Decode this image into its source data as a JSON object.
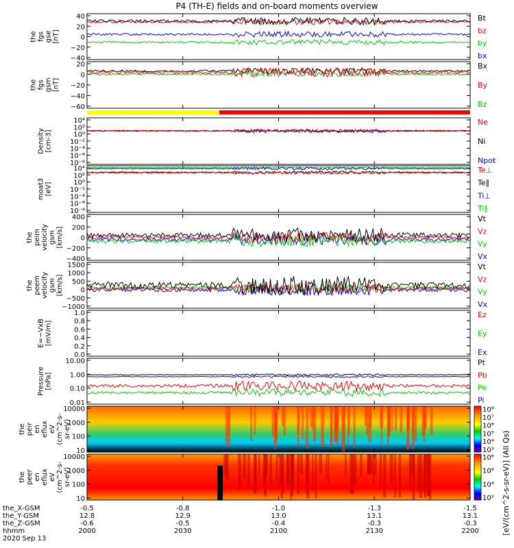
{
  "title": "P4 (TH-E) fields and on-board moments overview",
  "date_label": "2020 Sep 13",
  "colorbar_unit": "[eV/(cm^2-s-sr-eV)] (All Qs)",
  "time_axis": {
    "ticks": [
      {
        "hhmm": "2000",
        "x": "-0.5",
        "y": "12.8",
        "z": "-0.6"
      },
      {
        "hhmm": "2030",
        "x": "-0.8",
        "y": "12.9",
        "z": "-0.5"
      },
      {
        "hhmm": "2100",
        "x": "-1.0",
        "y": "13.0",
        "z": "-0.4"
      },
      {
        "hhmm": "2130",
        "x": "-1.3",
        "y": "13.1",
        "z": "-0.3"
      },
      {
        "hhmm": "2200",
        "x": "-1.5",
        "y": "13.1",
        "z": "-0.3"
      }
    ],
    "row_labels": [
      "the_X-GSM",
      "the_Y-GSM",
      "the_Z-GSM",
      "hhmm"
    ]
  },
  "mode_bar": {
    "colors": [
      "#ffff00",
      "#ff0000"
    ],
    "switch_fraction": 0.345
  },
  "chart_data": [
    {
      "type": "line",
      "ylabel_lines": [
        "the",
        "fgs",
        "gse",
        "[nT]"
      ],
      "ticks": [
        "40",
        "20",
        "0",
        "−20",
        "−40"
      ],
      "ylim": [
        -40,
        40
      ],
      "scale": "linear",
      "legend": [
        {
          "name": "Bt",
          "color": "#000000"
        },
        {
          "name": "bz",
          "color": "#ff0000"
        },
        {
          "name": "by",
          "color": "#00cc00"
        },
        {
          "name": "bx",
          "color": "#0000ff"
        }
      ]
    },
    {
      "type": "line",
      "ylabel_lines": [
        "the",
        "fgs",
        "gsm",
        "[nT]"
      ],
      "ticks": [
        "20",
        "0",
        "−20",
        "−40",
        "−60"
      ],
      "ylim": [
        -70,
        25
      ],
      "scale": "linear",
      "legend": [
        {
          "name": "Bx",
          "color": "#000000"
        },
        {
          "name": "By",
          "color": "#ff0000"
        },
        {
          "name": "Bz",
          "color": "#00cc00"
        }
      ]
    },
    {
      "type": "line",
      "ylabel_lines": [
        "Density",
        "[cm-3]"
      ],
      "ticks": [
        "10⁴",
        "10²",
        "10⁰",
        "10⁻²",
        "10⁻⁴",
        "10⁻⁶",
        "10⁻⁸"
      ],
      "ylim": [
        -8,
        4
      ],
      "scale": "log",
      "legend": [
        {
          "name": "Ne",
          "color": "#ff0000"
        },
        {
          "name": "Ni",
          "color": "#000000"
        },
        {
          "name": "Npot",
          "color": "#0000ff"
        }
      ]
    },
    {
      "type": "line",
      "ylabel_lines": [
        "moat3",
        "[eV]"
      ],
      "ticks": [
        "10⁴",
        "10²",
        "10⁰",
        "10⁻²",
        "10⁻⁴",
        "10⁻⁶",
        "10⁻⁸"
      ],
      "ylim": [
        -8,
        4
      ],
      "scale": "log",
      "legend": [
        {
          "name": "Te⊥",
          "color": "#ff0000"
        },
        {
          "name": "Te∥",
          "color": "#000000"
        },
        {
          "name": "Ti⊥",
          "color": "#0000ff"
        },
        {
          "name": "Ti∥",
          "color": "#00cc00"
        }
      ]
    },
    {
      "type": "line",
      "ylabel_lines": [
        "the",
        "peim",
        "velocity",
        "gsm",
        "[km/s]"
      ],
      "ticks": [
        "400",
        "200",
        "0",
        "−200",
        "−400"
      ],
      "ylim": [
        -400,
        400
      ],
      "scale": "linear",
      "legend": [
        {
          "name": "Vt",
          "color": "#000000"
        },
        {
          "name": "Vz",
          "color": "#ff0000"
        },
        {
          "name": "Vy",
          "color": "#00cc00"
        },
        {
          "name": "Vx",
          "color": "#0000ff"
        }
      ]
    },
    {
      "type": "line",
      "ylabel_lines": [
        "the",
        "peem",
        "velocity",
        "gsm",
        "[km/s]"
      ],
      "ticks": [
        "1500",
        "1000",
        "500",
        "0",
        "−500",
        "−1000"
      ],
      "ylim": [
        -1200,
        1600
      ],
      "scale": "linear",
      "legend": [
        {
          "name": "Vt",
          "color": "#000000"
        },
        {
          "name": "Vz",
          "color": "#ff0000"
        },
        {
          "name": "Vy",
          "color": "#00cc00"
        },
        {
          "name": "Vx",
          "color": "#0000ff"
        }
      ]
    },
    {
      "type": "line",
      "ylabel_lines": [
        "E=−VxB",
        "[mV/m]"
      ],
      "ticks": [
        "1.0",
        "0.8",
        "0.6",
        "0.4",
        "0.2",
        "0.0"
      ],
      "ylim": [
        0,
        1
      ],
      "scale": "linear",
      "legend": [
        {
          "name": "Ez",
          "color": "#ff0000"
        },
        {
          "name": "Ey",
          "color": "#00cc00"
        },
        {
          "name": "Ex",
          "color": "#0000ff"
        }
      ]
    },
    {
      "type": "line",
      "ylabel_lines": [
        "Pressure",
        "[nPa]"
      ],
      "ticks": [
        "10.00",
        "1.00",
        "0.10",
        "0.01"
      ],
      "ylim": [
        -2,
        1
      ],
      "scale": "log",
      "legend": [
        {
          "name": "Pt",
          "color": "#000000"
        },
        {
          "name": "Pb",
          "color": "#ff0000"
        },
        {
          "name": "Pe",
          "color": "#00cc00"
        },
        {
          "name": "Pi",
          "color": "#0000ff"
        }
      ]
    },
    {
      "type": "heatmap",
      "ylabel_lines": [
        "the",
        "peir",
        "en",
        "eflux",
        "eV",
        "(cm^2-s-",
        "sr-eV)"
      ],
      "ticks": [
        "10000",
        "1000",
        "100",
        "10"
      ],
      "ylim": [
        5,
        30000
      ],
      "scale": "log",
      "colorbar_ticks": [
        "10⁸",
        "10⁷",
        "10⁶",
        "10⁵",
        "10⁴",
        "10³"
      ]
    },
    {
      "type": "heatmap",
      "ylabel_lines": [
        "the",
        "peer",
        "en",
        "eflux",
        "eV",
        "(cm^2-s-",
        "sr-eV)"
      ],
      "ticks": [
        "10000",
        "1000",
        "100",
        "10"
      ],
      "ylim": [
        5,
        30000
      ],
      "scale": "log",
      "colorbar_ticks": [
        "10⁸",
        "10⁶",
        "10⁴",
        "10²"
      ]
    }
  ]
}
